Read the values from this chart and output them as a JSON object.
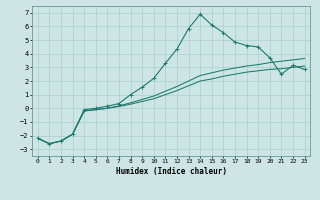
{
  "title": "",
  "xlabel": "Humidex (Indice chaleur)",
  "xlim": [
    -0.5,
    23.5
  ],
  "ylim": [
    -3.5,
    7.5
  ],
  "xticks": [
    0,
    1,
    2,
    3,
    4,
    5,
    6,
    7,
    8,
    9,
    10,
    11,
    12,
    13,
    14,
    15,
    16,
    17,
    18,
    19,
    20,
    21,
    22,
    23
  ],
  "yticks": [
    -3,
    -2,
    -1,
    0,
    1,
    2,
    3,
    4,
    5,
    6,
    7
  ],
  "background_color": "#cde5e5",
  "grid_color": "#aacfcf",
  "line_color": "#1e7a6e",
  "line1_x": [
    0,
    1,
    2,
    3,
    4,
    5,
    6,
    7,
    8,
    9,
    10,
    11,
    12,
    13,
    14,
    15,
    16,
    17,
    18,
    19,
    20,
    21,
    22,
    23
  ],
  "line1_y": [
    -2.2,
    -2.6,
    -2.4,
    -1.9,
    -0.1,
    0.0,
    0.15,
    0.35,
    1.0,
    1.55,
    2.2,
    3.3,
    4.35,
    5.85,
    6.9,
    6.1,
    5.55,
    4.85,
    4.6,
    4.5,
    3.7,
    2.5,
    3.15,
    2.85
  ],
  "line2_x": [
    0,
    1,
    2,
    3,
    4,
    5,
    6,
    7,
    8,
    9,
    10,
    11,
    12,
    13,
    14,
    15,
    16,
    17,
    18,
    19,
    20,
    21,
    22,
    23
  ],
  "line2_y": [
    -2.2,
    -2.6,
    -2.4,
    -1.9,
    -0.2,
    -0.1,
    0.0,
    0.13,
    0.3,
    0.5,
    0.7,
    1.0,
    1.3,
    1.65,
    2.0,
    2.15,
    2.35,
    2.5,
    2.65,
    2.75,
    2.85,
    2.9,
    3.0,
    3.1
  ],
  "line3_x": [
    0,
    1,
    2,
    3,
    4,
    5,
    6,
    7,
    8,
    9,
    10,
    11,
    12,
    13,
    14,
    15,
    16,
    17,
    18,
    19,
    20,
    21,
    22,
    23
  ],
  "line3_y": [
    -2.2,
    -2.6,
    -2.4,
    -1.9,
    -0.2,
    -0.1,
    0.0,
    0.18,
    0.4,
    0.65,
    0.9,
    1.25,
    1.6,
    2.0,
    2.4,
    2.6,
    2.8,
    2.95,
    3.1,
    3.2,
    3.35,
    3.45,
    3.55,
    3.65
  ]
}
